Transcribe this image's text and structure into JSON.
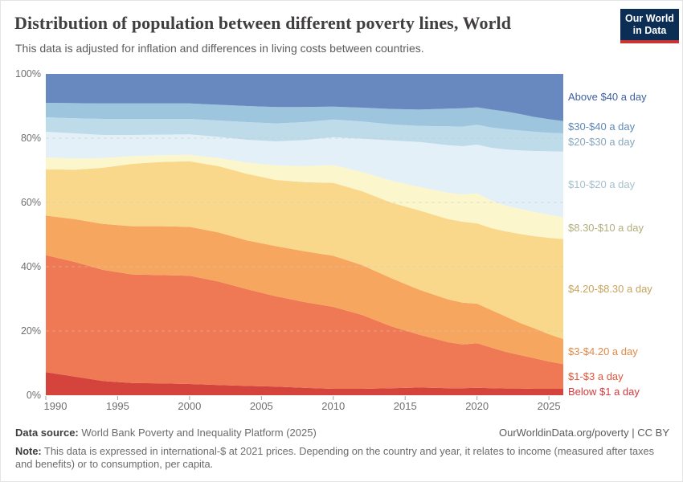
{
  "header": {
    "title": "Distribution of population between different poverty lines, World",
    "subtitle": "This data is adjusted for inflation and differences in living costs between countries.",
    "logo": {
      "line1": "Our World",
      "line2": "in Data",
      "bg_color": "#0d2e54",
      "bar_color": "#cc3434"
    }
  },
  "chart_data": {
    "type": "area",
    "stacked": true,
    "title": "Distribution of population between different poverty lines, World",
    "xlabel": "",
    "ylabel": "",
    "y_unit": "%",
    "ylim": [
      0,
      100
    ],
    "xlim": [
      1990,
      2026
    ],
    "x_ticks": [
      1990,
      1995,
      2000,
      2005,
      2010,
      2015,
      2020,
      2025
    ],
    "y_ticks": [
      0,
      20,
      40,
      60,
      80,
      100
    ],
    "grid": "horizontal dashed at 20,40,60,80",
    "legend_position": "right",
    "x": [
      1990,
      1992,
      1994,
      1996,
      1998,
      2000,
      2002,
      2004,
      2006,
      2008,
      2010,
      2012,
      2014,
      2016,
      2018,
      2019,
      2020,
      2021,
      2022,
      2023,
      2024,
      2025,
      2026
    ],
    "series": [
      {
        "name": "Below $1 a day",
        "color": "#d5433d",
        "label_color": "#d7383c",
        "values": [
          7.2,
          5.8,
          4.4,
          3.8,
          3.7,
          3.5,
          3.2,
          2.9,
          2.7,
          2.3,
          2.0,
          2.0,
          2.2,
          2.4,
          2.2,
          2.2,
          2.3,
          2.2,
          2.1,
          2.1,
          2.0,
          2.0,
          2.0
        ]
      },
      {
        "name": "$1-$3 a day",
        "color": "#ef7855",
        "label_color": "#e2563a",
        "values": [
          36.4,
          35.7,
          34.6,
          33.8,
          33.7,
          33.7,
          32.2,
          30.1,
          28.1,
          26.7,
          25.5,
          23.0,
          19.3,
          16.4,
          14.3,
          13.6,
          13.9,
          12.6,
          11.4,
          10.4,
          9.5,
          8.5,
          7.7
        ]
      },
      {
        "name": "$3-$4.20 a day",
        "color": "#f7a660",
        "label_color": "#df8a48",
        "values": [
          12.3,
          13.3,
          14.3,
          15.0,
          15.2,
          15.2,
          15.3,
          15.2,
          15.6,
          15.8,
          15.9,
          15.5,
          15.0,
          14.0,
          13.3,
          13.0,
          12.3,
          11.7,
          11.0,
          10.0,
          9.3,
          8.5,
          7.8
        ]
      },
      {
        "name": "$4.20-$8.30 a day",
        "color": "#fad88b",
        "label_color": "#c7a45c",
        "values": [
          14.4,
          15.4,
          17.5,
          19.4,
          20.0,
          20.4,
          20.6,
          20.7,
          20.6,
          21.5,
          22.7,
          23.0,
          23.5,
          24.7,
          25.0,
          25.2,
          25.0,
          25.5,
          26.5,
          27.7,
          28.7,
          30.0,
          31.1
        ]
      },
      {
        "name": "$8.30-$10 a day",
        "color": "#fcf6cd",
        "label_color": "#b3ae7c",
        "values": [
          3.7,
          3.5,
          3.0,
          2.4,
          2.1,
          2.0,
          2.5,
          3.5,
          4.5,
          5.0,
          5.5,
          6.0,
          6.8,
          7.3,
          8.2,
          8.5,
          9.3,
          8.5,
          8.0,
          7.8,
          7.5,
          7.2,
          6.8
        ]
      },
      {
        "name": "$10-$20 a day",
        "color": "#e4f0f7",
        "label_color": "#a7bfce",
        "values": [
          8.0,
          7.8,
          7.2,
          6.6,
          6.4,
          6.4,
          6.6,
          7.1,
          7.5,
          8.1,
          8.7,
          10.3,
          12.5,
          14.0,
          14.8,
          15.0,
          15.2,
          16.5,
          17.5,
          18.2,
          19.0,
          19.7,
          20.4
        ]
      },
      {
        "name": "$20-$30 a day",
        "color": "#bedbea",
        "label_color": "#89a7bc",
        "values": [
          4.5,
          4.7,
          5.0,
          5.0,
          4.9,
          4.8,
          5.1,
          5.5,
          5.6,
          5.6,
          5.5,
          5.4,
          5.0,
          5.0,
          5.9,
          6.1,
          6.2,
          6.3,
          6.3,
          6.2,
          6.0,
          5.8,
          5.7
        ]
      },
      {
        "name": "$30-$40 a day",
        "color": "#9dc5de",
        "label_color": "#5f88b6",
        "values": [
          4.5,
          4.7,
          4.8,
          4.8,
          4.8,
          4.8,
          4.9,
          5.0,
          5.1,
          4.7,
          4.0,
          4.3,
          4.8,
          5.1,
          5.5,
          5.7,
          5.4,
          5.6,
          5.5,
          5.1,
          4.6,
          4.2,
          3.8
        ]
      },
      {
        "name": "Above $40 a day",
        "color": "#6889bf",
        "label_color": "#3f5fa0",
        "values": [
          9.0,
          9.1,
          9.2,
          9.2,
          9.2,
          9.2,
          9.6,
          10.0,
          10.3,
          10.3,
          10.2,
          10.5,
          10.9,
          11.1,
          10.8,
          10.7,
          10.4,
          11.1,
          11.7,
          12.5,
          13.4,
          14.1,
          14.7
        ]
      }
    ]
  },
  "footer": {
    "source_label": "Data source:",
    "source": "World Bank Poverty and Inequality Platform (2025)",
    "link": "OurWorldinData.org/poverty",
    "separator": "|",
    "license": "CC BY",
    "note_label": "Note:",
    "note": "This data is expressed in international-$ at 2021 prices. Depending on the country and year, it relates to income (measured after taxes and benefits) or to consumption, per capita."
  }
}
